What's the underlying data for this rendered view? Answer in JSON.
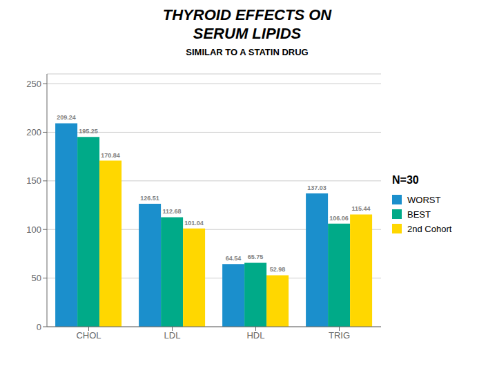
{
  "chart_data": {
    "type": "bar",
    "title": "THYROID EFFECTS ON\nSERUM LIPIDS",
    "subtitle": "SIMILAR TO A STATIN DRUG",
    "annotations": [
      "N=30"
    ],
    "categories": [
      "CHOL",
      "LDL",
      "HDL",
      "TRIG"
    ],
    "series": [
      {
        "name": "WORST",
        "color": "#1B8FCC",
        "values": [
          209.24,
          126.51,
          64.54,
          137.03
        ]
      },
      {
        "name": "BEST",
        "color": "#00AA88",
        "values": [
          195.25,
          112.68,
          65.75,
          106.06
        ]
      },
      {
        "name": "2nd Cohort",
        "color": "#FFD700",
        "values": [
          170.84,
          101.04,
          52.98,
          115.44
        ]
      }
    ],
    "ylim": [
      0,
      260
    ],
    "yticks": [
      0,
      50,
      100,
      150,
      200,
      250
    ],
    "grid": true,
    "legend": "right",
    "data_labels": true
  }
}
